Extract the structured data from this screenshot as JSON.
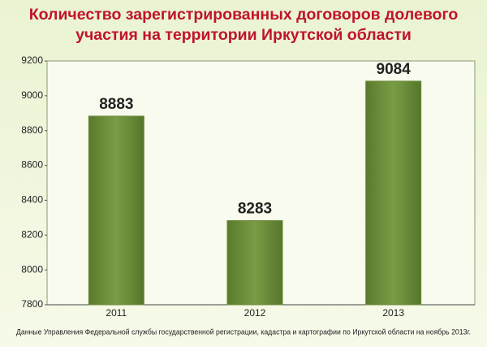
{
  "chart_data": {
    "type": "bar",
    "title": "Количество зарегистрированных договоров долевого участия на территории Иркутской области",
    "categories": [
      "2011",
      "2012",
      "2013"
    ],
    "values": [
      8883,
      8283,
      9084
    ],
    "color": "#6a8b38",
    "ylim": [
      7800,
      9200
    ],
    "yticks": [
      7800,
      8000,
      8200,
      8400,
      8600,
      8800,
      9000,
      9200
    ],
    "grid": false,
    "source": "Данные Управления Федеральной службы государственной регистрации, кадастра и картографии по Иркутской области на ноябрь 2013г."
  }
}
